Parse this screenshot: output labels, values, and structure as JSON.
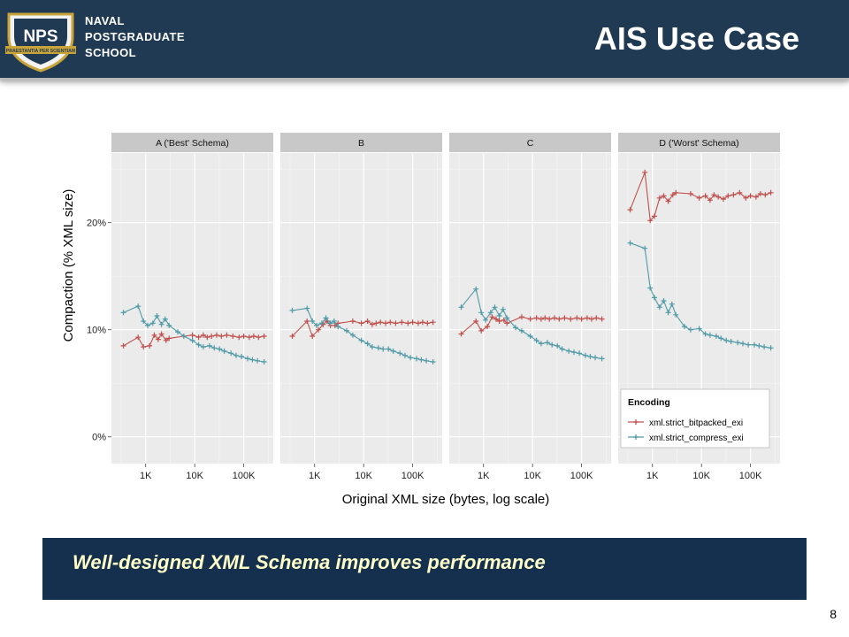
{
  "header": {
    "school_lines": [
      "NAVAL",
      "POSTGRADUATE",
      "SCHOOL"
    ],
    "logo_letters": "NPS",
    "logo_motto": "PRAESTANTIA PER SCIENTIAM",
    "title": "AIS Use Case"
  },
  "banner": {
    "text": "Well-designed XML Schema improves performance"
  },
  "page_number": "8",
  "colors": {
    "header_bg": "#1f3a52",
    "banner_bg": "#15304f",
    "banner_text": "#ffffc8",
    "bitpacked": "#c0504d",
    "compress": "#4f9aa7",
    "panel_bg": "#ebebeb",
    "strip_bg": "#c8c8c8"
  },
  "chart_data": {
    "type": "line",
    "facets": [
      "A ('Best' Schema)",
      "B",
      "C",
      "D ('Worst' Schema)"
    ],
    "xlabel": "Original  XML  size (bytes, log scale)",
    "ylabel": "Compaction (%  XML  size)",
    "x_scale": "log10",
    "x_range": [
      200,
      400000
    ],
    "x_ticks": [
      1000,
      10000,
      100000
    ],
    "x_tick_labels": [
      "1K",
      "10K",
      "100K"
    ],
    "y_range": [
      -2.5,
      26.5
    ],
    "y_ticks": [
      0,
      10,
      20
    ],
    "y_tick_labels": [
      "0%",
      "10%",
      "20%"
    ],
    "grid": true,
    "legend": {
      "title": "Encoding",
      "position": "inside-bottom-right of panel D",
      "entries": [
        "xml.strict_bitpacked_exi",
        "xml.strict_compress_exi"
      ]
    },
    "panels": [
      {
        "name": "A ('Best' Schema)",
        "series": [
          {
            "name": "xml.strict_bitpacked_exi",
            "x": [
              350,
              700,
              900,
              1200,
              1500,
              1800,
              2100,
              2600,
              3000,
              6000,
              9000,
              12000,
              15000,
              18000,
              22000,
              28000,
              35000,
              45000,
              60000,
              80000,
              100000,
              130000,
              160000,
              200000,
              260000
            ],
            "y": [
              8.5,
              9.3,
              8.4,
              8.5,
              9.5,
              9.1,
              9.6,
              9.0,
              9.2,
              9.4,
              9.5,
              9.3,
              9.5,
              9.3,
              9.4,
              9.5,
              9.4,
              9.5,
              9.4,
              9.3,
              9.4,
              9.3,
              9.4,
              9.3,
              9.4
            ]
          },
          {
            "name": "xml.strict_compress_exi",
            "x": [
              350,
              700,
              900,
              1100,
              1400,
              1700,
              2100,
              2500,
              3000,
              4500,
              6000,
              9000,
              12000,
              15000,
              20000,
              25000,
              32000,
              40000,
              55000,
              70000,
              90000,
              120000,
              150000,
              190000,
              260000
            ],
            "y": [
              11.6,
              12.2,
              10.8,
              10.4,
              10.6,
              11.3,
              10.5,
              11.0,
              10.4,
              9.8,
              9.4,
              9.0,
              8.6,
              8.4,
              8.5,
              8.3,
              8.2,
              8.0,
              7.8,
              7.6,
              7.5,
              7.3,
              7.2,
              7.1,
              7.0
            ]
          }
        ]
      },
      {
        "name": "B",
        "series": [
          {
            "name": "xml.strict_bitpacked_exi",
            "x": [
              350,
              700,
              900,
              1200,
              1500,
              1800,
              2100,
              2600,
              3000,
              6000,
              9000,
              12000,
              15000,
              18000,
              22000,
              28000,
              35000,
              45000,
              60000,
              80000,
              100000,
              130000,
              160000,
              200000,
              260000
            ],
            "y": [
              9.4,
              10.8,
              9.4,
              10.0,
              10.5,
              10.8,
              10.4,
              10.4,
              10.6,
              10.8,
              10.6,
              10.8,
              10.5,
              10.6,
              10.7,
              10.6,
              10.7,
              10.6,
              10.7,
              10.6,
              10.7,
              10.6,
              10.7,
              10.6,
              10.7
            ]
          },
          {
            "name": "xml.strict_compress_exi",
            "x": [
              350,
              700,
              900,
              1100,
              1400,
              1700,
              2100,
              2500,
              3000,
              4500,
              6000,
              9000,
              12000,
              15000,
              20000,
              25000,
              32000,
              40000,
              55000,
              70000,
              90000,
              120000,
              150000,
              190000,
              260000
            ],
            "y": [
              11.8,
              12.0,
              10.8,
              10.4,
              10.6,
              11.1,
              10.6,
              10.8,
              10.3,
              9.9,
              9.5,
              9.0,
              8.7,
              8.4,
              8.3,
              8.2,
              8.2,
              8.0,
              7.8,
              7.6,
              7.4,
              7.3,
              7.2,
              7.1,
              7.0
            ]
          }
        ]
      },
      {
        "name": "C",
        "series": [
          {
            "name": "xml.strict_bitpacked_exi",
            "x": [
              350,
              700,
              900,
              1200,
              1500,
              1800,
              2100,
              2600,
              3000,
              6000,
              9000,
              12000,
              15000,
              18000,
              22000,
              28000,
              35000,
              45000,
              60000,
              80000,
              100000,
              130000,
              160000,
              200000,
              260000
            ],
            "y": [
              9.6,
              10.8,
              9.9,
              10.3,
              11.2,
              11.0,
              10.8,
              10.9,
              10.6,
              11.2,
              11.0,
              11.1,
              11.0,
              11.1,
              11.0,
              11.1,
              11.0,
              11.1,
              11.0,
              11.1,
              11.0,
              11.1,
              11.0,
              11.1,
              11.0
            ]
          },
          {
            "name": "xml.strict_compress_exi",
            "x": [
              350,
              700,
              900,
              1100,
              1400,
              1700,
              2100,
              2500,
              3000,
              4500,
              6000,
              9000,
              12000,
              15000,
              20000,
              25000,
              32000,
              40000,
              55000,
              70000,
              90000,
              120000,
              150000,
              190000,
              260000
            ],
            "y": [
              12.1,
              13.8,
              11.6,
              10.9,
              11.6,
              12.1,
              11.3,
              11.9,
              11.1,
              10.2,
              9.9,
              9.4,
              9.0,
              8.7,
              8.8,
              8.6,
              8.5,
              8.2,
              8.0,
              7.9,
              7.8,
              7.6,
              7.5,
              7.4,
              7.3
            ]
          }
        ]
      },
      {
        "name": "D ('Worst' Schema)",
        "series": [
          {
            "name": "xml.strict_bitpacked_exi",
            "x": [
              350,
              700,
              900,
              1100,
              1400,
              1700,
              2100,
              2600,
              3000,
              6000,
              9000,
              12000,
              15000,
              18000,
              22000,
              28000,
              35000,
              45000,
              60000,
              80000,
              100000,
              130000,
              160000,
              200000,
              260000
            ],
            "y": [
              21.2,
              24.7,
              20.2,
              20.6,
              22.3,
              22.5,
              22.0,
              22.6,
              22.8,
              22.7,
              22.3,
              22.5,
              22.1,
              22.6,
              22.4,
              22.2,
              22.5,
              22.6,
              22.8,
              22.3,
              22.5,
              22.4,
              22.7,
              22.6,
              22.8
            ]
          },
          {
            "name": "xml.strict_compress_exi",
            "x": [
              350,
              700,
              900,
              1100,
              1400,
              1700,
              2100,
              2500,
              3000,
              4500,
              6000,
              9000,
              12000,
              15000,
              20000,
              25000,
              32000,
              40000,
              55000,
              70000,
              90000,
              120000,
              150000,
              190000,
              260000
            ],
            "y": [
              18.1,
              17.6,
              13.9,
              13.0,
              12.1,
              12.7,
              11.6,
              12.4,
              11.4,
              10.3,
              10.0,
              10.1,
              9.6,
              9.5,
              9.4,
              9.2,
              9.0,
              8.9,
              8.8,
              8.7,
              8.6,
              8.6,
              8.5,
              8.4,
              8.3
            ]
          }
        ]
      }
    ]
  }
}
